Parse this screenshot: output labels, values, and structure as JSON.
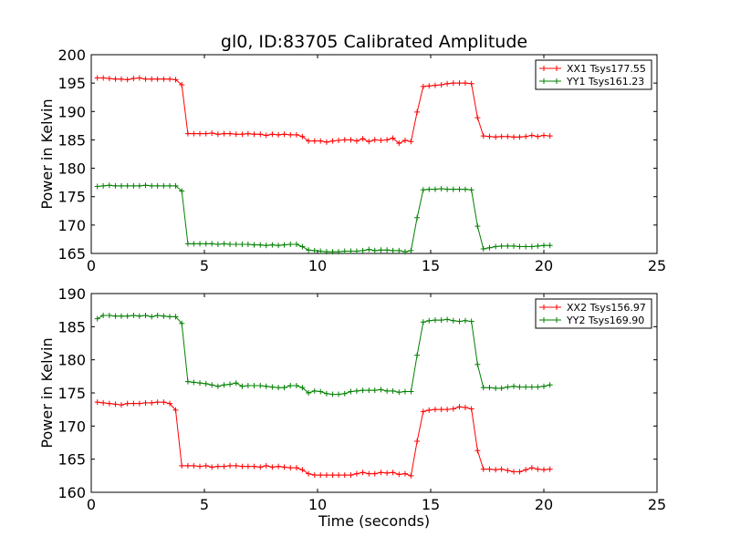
{
  "title": "gl0, ID:83705 Calibrated Amplitude",
  "chart_data": [
    {
      "type": "line",
      "ylabel": "Power in Kelvin",
      "xlabel": "",
      "xlim": [
        0,
        25
      ],
      "ylim": [
        165,
        200
      ],
      "xticks": [
        0,
        5,
        10,
        15,
        20,
        25
      ],
      "yticks": [
        165,
        170,
        175,
        180,
        185,
        190,
        195,
        200
      ],
      "legend_position": "top-right",
      "grid": false,
      "series": [
        {
          "name": "XX1 Tsys177.55",
          "color": "#ff0000",
          "x": [
            0.27,
            0.53,
            0.8,
            1.07,
            1.33,
            1.6,
            1.87,
            2.13,
            2.4,
            2.67,
            2.93,
            3.2,
            3.47,
            3.73,
            4.0,
            4.27,
            4.53,
            4.8,
            5.07,
            5.33,
            5.6,
            5.87,
            6.13,
            6.4,
            6.67,
            6.93,
            7.2,
            7.47,
            7.73,
            8.0,
            8.27,
            8.53,
            8.8,
            9.07,
            9.33,
            9.6,
            9.87,
            10.13,
            10.4,
            10.67,
            10.93,
            11.2,
            11.47,
            11.73,
            12.0,
            12.27,
            12.53,
            12.8,
            13.07,
            13.33,
            13.6,
            13.87,
            14.13,
            14.4,
            14.67,
            14.93,
            15.2,
            15.47,
            15.73,
            16.0,
            16.27,
            16.53,
            16.8,
            17.07,
            17.33,
            17.6,
            17.87,
            18.13,
            18.4,
            18.67,
            18.93,
            19.2,
            19.47,
            19.73,
            20.0,
            20.27
          ],
          "y": [
            195.9,
            195.9,
            195.8,
            195.7,
            195.7,
            195.6,
            195.8,
            195.9,
            195.7,
            195.7,
            195.7,
            195.7,
            195.7,
            195.6,
            194.7,
            186.1,
            186.1,
            186.1,
            186.1,
            186.2,
            186.0,
            186.1,
            186.1,
            186.0,
            186.0,
            186.1,
            186.0,
            186.0,
            185.8,
            186.0,
            185.9,
            186.0,
            185.9,
            185.9,
            185.6,
            184.8,
            184.8,
            184.8,
            184.6,
            184.8,
            184.9,
            185.0,
            185.0,
            184.8,
            185.2,
            184.7,
            185.0,
            184.9,
            185.0,
            185.3,
            184.4,
            184.9,
            184.7,
            189.9,
            194.4,
            194.5,
            194.6,
            194.7,
            194.9,
            195.0,
            195.0,
            195.0,
            194.9,
            188.9,
            185.7,
            185.6,
            185.5,
            185.6,
            185.6,
            185.5,
            185.5,
            185.6,
            185.8,
            185.6,
            185.8,
            185.7
          ]
        },
        {
          "name": "YY1 Tsys161.23",
          "color": "#008000",
          "x": [
            0.27,
            0.53,
            0.8,
            1.07,
            1.33,
            1.6,
            1.87,
            2.13,
            2.4,
            2.67,
            2.93,
            3.2,
            3.47,
            3.73,
            4.0,
            4.27,
            4.53,
            4.8,
            5.07,
            5.33,
            5.6,
            5.87,
            6.13,
            6.4,
            6.67,
            6.93,
            7.2,
            7.47,
            7.73,
            8.0,
            8.27,
            8.53,
            8.8,
            9.07,
            9.33,
            9.6,
            9.87,
            10.13,
            10.4,
            10.67,
            10.93,
            11.2,
            11.47,
            11.73,
            12.0,
            12.27,
            12.53,
            12.8,
            13.07,
            13.33,
            13.6,
            13.87,
            14.13,
            14.4,
            14.67,
            14.93,
            15.2,
            15.47,
            15.73,
            16.0,
            16.27,
            16.53,
            16.8,
            17.07,
            17.33,
            17.6,
            17.87,
            18.13,
            18.4,
            18.67,
            18.93,
            19.2,
            19.47,
            19.73,
            20.0,
            20.27
          ],
          "y": [
            176.8,
            176.9,
            177.0,
            176.9,
            176.9,
            176.9,
            176.9,
            176.9,
            177.0,
            176.9,
            176.9,
            176.9,
            176.9,
            176.9,
            176.0,
            166.7,
            166.7,
            166.7,
            166.7,
            166.7,
            166.6,
            166.7,
            166.6,
            166.6,
            166.6,
            166.6,
            166.5,
            166.5,
            166.4,
            166.5,
            166.4,
            166.5,
            166.6,
            166.6,
            166.2,
            165.6,
            165.5,
            165.4,
            165.3,
            165.3,
            165.3,
            165.4,
            165.4,
            165.4,
            165.5,
            165.7,
            165.5,
            165.6,
            165.6,
            165.5,
            165.5,
            165.3,
            165.5,
            171.3,
            176.2,
            176.3,
            176.3,
            176.4,
            176.3,
            176.3,
            176.3,
            176.3,
            176.2,
            169.8,
            165.8,
            166.0,
            166.2,
            166.3,
            166.3,
            166.3,
            166.2,
            166.2,
            166.2,
            166.3,
            166.4,
            166.4
          ]
        }
      ]
    },
    {
      "type": "line",
      "ylabel": "Power in Kelvin",
      "xlabel": "Time (seconds)",
      "xlim": [
        0,
        25
      ],
      "ylim": [
        160,
        190
      ],
      "xticks": [
        0,
        5,
        10,
        15,
        20,
        25
      ],
      "yticks": [
        160,
        165,
        170,
        175,
        180,
        185,
        190
      ],
      "legend_position": "top-right",
      "grid": false,
      "series": [
        {
          "name": "XX2 Tsys156.97",
          "color": "#ff0000",
          "x": [
            0.27,
            0.53,
            0.8,
            1.07,
            1.33,
            1.6,
            1.87,
            2.13,
            2.4,
            2.67,
            2.93,
            3.2,
            3.47,
            3.73,
            4.0,
            4.27,
            4.53,
            4.8,
            5.07,
            5.33,
            5.6,
            5.87,
            6.13,
            6.4,
            6.67,
            6.93,
            7.2,
            7.47,
            7.73,
            8.0,
            8.27,
            8.53,
            8.8,
            9.07,
            9.33,
            9.6,
            9.87,
            10.13,
            10.4,
            10.67,
            10.93,
            11.2,
            11.47,
            11.73,
            12.0,
            12.27,
            12.53,
            12.8,
            13.07,
            13.33,
            13.6,
            13.87,
            14.13,
            14.4,
            14.67,
            14.93,
            15.2,
            15.47,
            15.73,
            16.0,
            16.27,
            16.53,
            16.8,
            17.07,
            17.33,
            17.6,
            17.87,
            18.13,
            18.4,
            18.67,
            18.93,
            19.2,
            19.47,
            19.73,
            20.0,
            20.27
          ],
          "y": [
            173.6,
            173.5,
            173.4,
            173.3,
            173.2,
            173.4,
            173.4,
            173.4,
            173.5,
            173.5,
            173.6,
            173.6,
            173.4,
            172.4,
            164.0,
            164.0,
            164.0,
            163.9,
            164.0,
            163.8,
            163.9,
            163.9,
            164.0,
            164.0,
            163.9,
            163.9,
            163.9,
            163.8,
            164.0,
            163.8,
            163.9,
            163.8,
            163.7,
            163.7,
            163.4,
            162.8,
            162.6,
            162.6,
            162.6,
            162.6,
            162.6,
            162.6,
            162.6,
            162.8,
            163.0,
            162.8,
            162.8,
            163.0,
            162.9,
            163.0,
            162.7,
            162.8,
            162.5,
            167.7,
            172.2,
            172.4,
            172.5,
            172.5,
            172.5,
            172.6,
            172.9,
            172.8,
            172.6,
            166.3,
            163.5,
            163.5,
            163.4,
            163.5,
            163.3,
            163.1,
            163.1,
            163.4,
            163.7,
            163.5,
            163.4,
            163.5
          ]
        },
        {
          "name": "YY2 Tsys169.90",
          "color": "#008000",
          "x": [
            0.27,
            0.53,
            0.8,
            1.07,
            1.33,
            1.6,
            1.87,
            2.13,
            2.4,
            2.67,
            2.93,
            3.2,
            3.47,
            3.73,
            4.0,
            4.27,
            4.53,
            4.8,
            5.07,
            5.33,
            5.6,
            5.87,
            6.13,
            6.4,
            6.67,
            6.93,
            7.2,
            7.47,
            7.73,
            8.0,
            8.27,
            8.53,
            8.8,
            9.07,
            9.33,
            9.6,
            9.87,
            10.13,
            10.4,
            10.67,
            10.93,
            11.2,
            11.47,
            11.73,
            12.0,
            12.27,
            12.53,
            12.8,
            13.07,
            13.33,
            13.6,
            13.87,
            14.13,
            14.4,
            14.67,
            14.93,
            15.2,
            15.47,
            15.73,
            16.0,
            16.27,
            16.53,
            16.8,
            17.07,
            17.33,
            17.6,
            17.87,
            18.13,
            18.4,
            18.67,
            18.93,
            19.2,
            19.47,
            19.73,
            20.0,
            20.27
          ],
          "y": [
            186.2,
            186.7,
            186.7,
            186.6,
            186.6,
            186.6,
            186.7,
            186.6,
            186.7,
            186.5,
            186.7,
            186.6,
            186.5,
            186.5,
            185.5,
            176.7,
            176.6,
            176.5,
            176.4,
            176.2,
            176.0,
            176.2,
            176.3,
            176.5,
            176.0,
            176.1,
            176.1,
            176.1,
            176.0,
            175.9,
            175.8,
            175.8,
            176.1,
            176.1,
            175.8,
            175.0,
            175.3,
            175.2,
            174.9,
            174.8,
            174.8,
            174.9,
            175.2,
            175.3,
            175.4,
            175.4,
            175.4,
            175.5,
            175.3,
            175.3,
            175.1,
            175.2,
            175.2,
            180.7,
            185.7,
            185.9,
            186.0,
            186.0,
            186.1,
            185.9,
            185.8,
            185.9,
            185.8,
            179.3,
            175.8,
            175.8,
            175.7,
            175.7,
            175.9,
            176.0,
            175.9,
            175.9,
            175.9,
            175.9,
            176.0,
            176.2
          ]
        }
      ]
    }
  ]
}
